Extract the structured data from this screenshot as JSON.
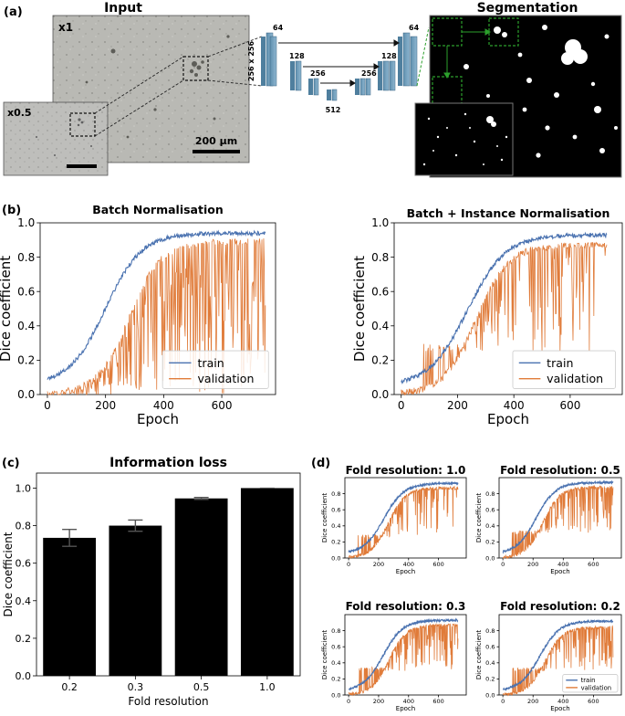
{
  "panels": {
    "a": {
      "label": "(a)",
      "input_title": "Input",
      "seg_title": "Segmentation",
      "zoom_x1": "x1",
      "zoom_x05": "x0.5",
      "scale_bar": "200 µm",
      "unet": {
        "size_label": "256 x 256",
        "channels": [
          "64",
          "128",
          "256",
          "512",
          "256",
          "128",
          "64"
        ]
      }
    },
    "b": {
      "label": "(b)"
    },
    "c": {
      "label": "(c)"
    },
    "d": {
      "label": "(d)"
    }
  },
  "colors": {
    "train": "#4a72b0",
    "validation": "#e07b39",
    "bar": "#000000"
  },
  "chart_data": [
    {
      "id": "b_left",
      "type": "line",
      "title": "Batch Normalisation",
      "xlabel": "Epoch",
      "ylabel": "Dice coefficient",
      "xlim": [
        -25,
        785
      ],
      "ylim": [
        0,
        1.0
      ],
      "xticks": [
        "0",
        "200",
        "400",
        "600"
      ],
      "yticks": [
        "0.0",
        "0.2",
        "0.4",
        "0.6",
        "0.8",
        "1.0"
      ],
      "legend": [
        "train",
        "validation"
      ],
      "legend_loc": "lower right",
      "train": {
        "x0": 0,
        "x1": 750,
        "start": 0.06,
        "plateau": 0.94,
        "mid": 200,
        "scale": 62
      },
      "validation": {
        "start": 0.0,
        "plateau": 0.89,
        "mid": 280,
        "scale": 55,
        "drop_prob": 0.6,
        "drop_floor": 0.0
      }
    },
    {
      "id": "b_right",
      "type": "line",
      "title": "Batch + Instance Normalisation",
      "xlabel": "Epoch",
      "ylabel": "Dice coefficient",
      "xlim": [
        -25,
        785
      ],
      "ylim": [
        0,
        1.0
      ],
      "xticks": [
        "0",
        "200",
        "400",
        "600"
      ],
      "yticks": [
        "0.0",
        "0.2",
        "0.4",
        "0.6",
        "0.8",
        "1.0"
      ],
      "legend": [
        "train",
        "validation"
      ],
      "legend_loc": "lower right",
      "train": {
        "x0": 0,
        "x1": 730,
        "start": 0.05,
        "plateau": 0.93,
        "mid": 235,
        "scale": 68
      },
      "validation": {
        "start": 0.0,
        "plateau": 0.87,
        "mid": 265,
        "scale": 58,
        "drop_prob": 0.25,
        "drop_floor": 0.25
      }
    },
    {
      "id": "c",
      "type": "bar",
      "title": "Information loss",
      "xlabel": "Fold resolution",
      "ylabel": "Dice coefficient",
      "categories": [
        "0.2",
        "0.3",
        "0.5",
        "1.0"
      ],
      "values": [
        0.735,
        0.8,
        0.945,
        1.0
      ],
      "errors": [
        0.045,
        0.03,
        0.005,
        0.0
      ],
      "ylim": [
        0,
        1.08
      ],
      "yticks": [
        "0.0",
        "0.2",
        "0.4",
        "0.6",
        "0.8",
        "1.0"
      ]
    },
    {
      "id": "d1",
      "type": "line",
      "title": "Fold resolution: 1.0",
      "xlabel": "Epoch",
      "ylabel": "Dice coefficient",
      "xlim": [
        -25,
        785
      ],
      "ylim": [
        0,
        1.0
      ],
      "xticks": [
        "0",
        "200",
        "400",
        "600"
      ],
      "yticks": [
        "0.0",
        "0.2",
        "0.4",
        "0.6",
        "0.8"
      ],
      "train": {
        "x0": 0,
        "x1": 730,
        "start": 0.05,
        "plateau": 0.93,
        "mid": 235,
        "scale": 68
      },
      "validation": {
        "start": 0.0,
        "plateau": 0.87,
        "mid": 265,
        "scale": 58,
        "drop_prob": 0.25,
        "drop_floor": 0.25
      }
    },
    {
      "id": "d2",
      "type": "line",
      "title": "Fold resolution: 0.5",
      "xlabel": "Epoch",
      "ylabel": "Dice coefficient",
      "xlim": [
        -25,
        785
      ],
      "ylim": [
        0,
        1.0
      ],
      "xticks": [
        "0",
        "200",
        "400",
        "600"
      ],
      "yticks": [
        "0.0",
        "0.2",
        "0.4",
        "0.6",
        "0.8"
      ],
      "train": {
        "x0": 0,
        "x1": 730,
        "start": 0.05,
        "plateau": 0.94,
        "mid": 220,
        "scale": 65
      },
      "validation": {
        "start": 0.0,
        "plateau": 0.88,
        "mid": 265,
        "scale": 58,
        "drop_prob": 0.3,
        "drop_floor": 0.3
      }
    },
    {
      "id": "d3",
      "type": "line",
      "title": "Fold resolution: 0.3",
      "xlabel": "Epoch",
      "ylabel": "Dice coefficient",
      "xlim": [
        -25,
        785
      ],
      "ylim": [
        0,
        1.0
      ],
      "xticks": [
        "0",
        "200",
        "400",
        "600"
      ],
      "yticks": [
        "0.0",
        "0.2",
        "0.4",
        "0.6",
        "0.8"
      ],
      "train": {
        "x0": 0,
        "x1": 730,
        "start": 0.05,
        "plateau": 0.93,
        "mid": 230,
        "scale": 66
      },
      "validation": {
        "start": 0.0,
        "plateau": 0.87,
        "mid": 270,
        "scale": 58,
        "drop_prob": 0.3,
        "drop_floor": 0.3
      }
    },
    {
      "id": "d4",
      "type": "line",
      "title": "Fold resolution: 0.2",
      "xlabel": "Epoch",
      "ylabel": "Dice coefficient",
      "xlim": [
        -25,
        785
      ],
      "ylim": [
        0,
        1.0
      ],
      "xticks": [
        "0",
        "200",
        "400",
        "600"
      ],
      "yticks": [
        "0.0",
        "0.2",
        "0.4",
        "0.6",
        "0.8"
      ],
      "legend": [
        "train",
        "validation"
      ],
      "legend_loc": "lower right",
      "train": {
        "x0": 0,
        "x1": 730,
        "start": 0.05,
        "plateau": 0.92,
        "mid": 245,
        "scale": 66
      },
      "validation": {
        "start": 0.0,
        "plateau": 0.84,
        "mid": 280,
        "scale": 58,
        "drop_prob": 0.3,
        "drop_floor": 0.3
      }
    }
  ]
}
